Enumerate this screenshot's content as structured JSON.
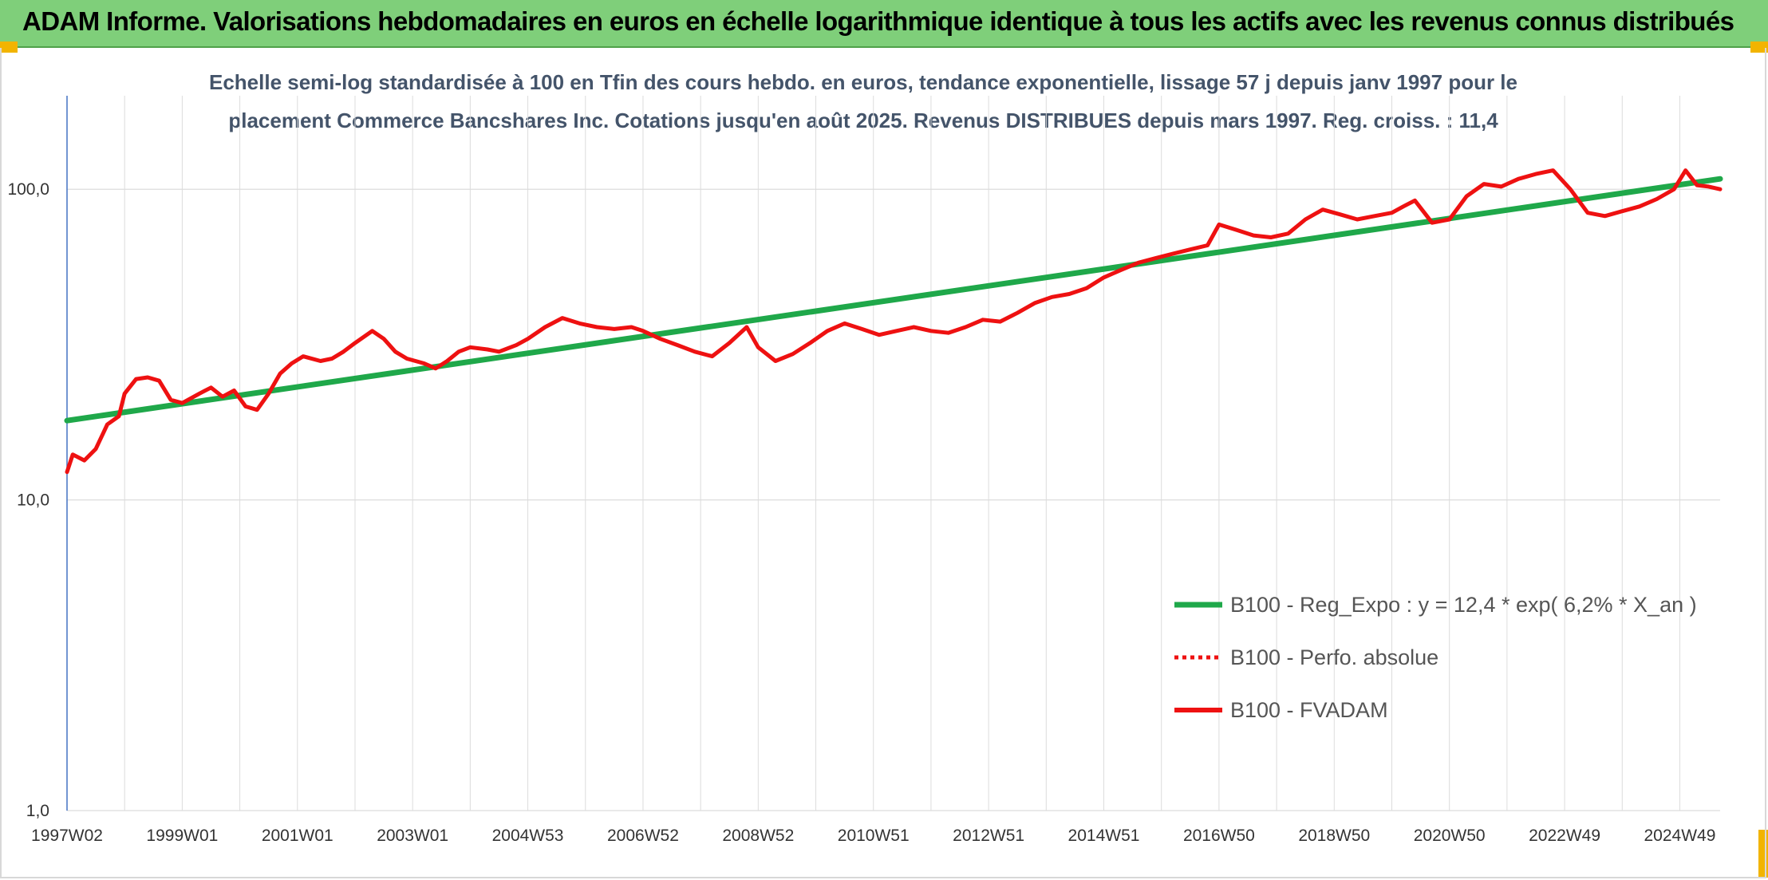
{
  "header": {
    "title": "ADAM Informe. Valorisations hebdomadaires en euros en échelle logarithmique identique à tous les actifs avec les revenus connus distribués"
  },
  "colors": {
    "banner": "#7fcf7a",
    "trend": "#1fa84a",
    "series": "#ee1111",
    "grid": "#dcdcdc",
    "axis": "#4472c4"
  },
  "chart_data": {
    "type": "line",
    "title_lines": [
      "Echelle semi-log standardisée à 100 en Tfin des cours hebdo. en euros, tendance exponentielle, lissage 57 j depuis janv 1997 pour le",
      "placement Commerce Bancshares Inc. Cotations jusqu'en août 2025. Revenus DISTRIBUES depuis mars 1997. Reg. croiss. : 11,4"
    ],
    "y_scale": "log",
    "ylim": [
      1,
      200
    ],
    "xlim": [
      1997.0,
      2025.7
    ],
    "y_ticks": [
      {
        "value": 1,
        "label": "1,0"
      },
      {
        "value": 10,
        "label": "10,0"
      },
      {
        "value": 100,
        "label": "100,0"
      }
    ],
    "x_ticks": [
      {
        "value": 1997.0,
        "label": "1997W02"
      },
      {
        "value": 1999.0,
        "label": "1999W01"
      },
      {
        "value": 2001.0,
        "label": "2001W01"
      },
      {
        "value": 2003.0,
        "label": "2003W01"
      },
      {
        "value": 2005.0,
        "label": "2004W53"
      },
      {
        "value": 2007.0,
        "label": "2006W52"
      },
      {
        "value": 2009.0,
        "label": "2008W52"
      },
      {
        "value": 2011.0,
        "label": "2010W51"
      },
      {
        "value": 2013.0,
        "label": "2012W51"
      },
      {
        "value": 2015.0,
        "label": "2014W51"
      },
      {
        "value": 2017.0,
        "label": "2016W50"
      },
      {
        "value": 2019.0,
        "label": "2018W50"
      },
      {
        "value": 2021.0,
        "label": "2020W50"
      },
      {
        "value": 2023.0,
        "label": "2022W49"
      },
      {
        "value": 2025.0,
        "label": "2024W49"
      }
    ],
    "grid_x": true,
    "grid_y": true,
    "legend_position": "right-center",
    "series": [
      {
        "name": "B100 - Reg_Expo : y = 12,4 * exp( 6,2% *  X_an )",
        "style": "trend",
        "x": [
          1997.0,
          2025.7
        ],
        "y": [
          18.0,
          108.0
        ]
      },
      {
        "name": "B100 - Perfo. absolue",
        "style": "dotted",
        "x": [],
        "y": []
      },
      {
        "name": "B100 - FVADAM",
        "style": "solid",
        "x": [
          1997.0,
          1997.1,
          1997.3,
          1997.5,
          1997.7,
          1997.9,
          1998.0,
          1998.2,
          1998.4,
          1998.6,
          1998.8,
          1999.0,
          1999.3,
          1999.5,
          1999.7,
          1999.9,
          2000.1,
          2000.3,
          2000.5,
          2000.7,
          2000.9,
          2001.1,
          2001.4,
          2001.6,
          2001.8,
          2002.0,
          2002.3,
          2002.5,
          2002.7,
          2002.9,
          2003.2,
          2003.4,
          2003.6,
          2003.8,
          2004.0,
          2004.3,
          2004.5,
          2004.8,
          2005.0,
          2005.3,
          2005.6,
          2005.9,
          2006.2,
          2006.5,
          2006.8,
          2007.0,
          2007.3,
          2007.6,
          2007.9,
          2008.2,
          2008.5,
          2008.8,
          2009.0,
          2009.3,
          2009.6,
          2009.9,
          2010.2,
          2010.5,
          2010.8,
          2011.1,
          2011.4,
          2011.7,
          2012.0,
          2012.3,
          2012.6,
          2012.9,
          2013.2,
          2013.5,
          2013.8,
          2014.1,
          2014.4,
          2014.7,
          2015.0,
          2015.3,
          2015.6,
          2015.9,
          2016.2,
          2016.5,
          2016.8,
          2017.0,
          2017.3,
          2017.6,
          2017.9,
          2018.2,
          2018.5,
          2018.8,
          2019.1,
          2019.4,
          2019.7,
          2020.0,
          2020.2,
          2020.4,
          2020.7,
          2021.0,
          2021.3,
          2021.6,
          2021.9,
          2022.2,
          2022.5,
          2022.8,
          2023.1,
          2023.4,
          2023.7,
          2024.0,
          2024.3,
          2024.6,
          2024.9,
          2025.1,
          2025.3,
          2025.5,
          2025.7
        ],
        "y": [
          12.3,
          14.0,
          13.4,
          14.6,
          17.5,
          18.6,
          22.0,
          24.5,
          24.8,
          24.2,
          21.0,
          20.5,
          22.0,
          23.0,
          21.5,
          22.5,
          20.0,
          19.5,
          22.0,
          25.5,
          27.5,
          29.0,
          28.0,
          28.5,
          30.0,
          32.0,
          35.0,
          33.0,
          30.0,
          28.5,
          27.5,
          26.5,
          28.0,
          30.0,
          31.0,
          30.5,
          30.0,
          31.5,
          33.0,
          36.0,
          38.5,
          37.0,
          36.0,
          35.5,
          36.0,
          35.0,
          33.0,
          31.5,
          30.0,
          29.0,
          32.0,
          36.0,
          31.0,
          28.0,
          29.5,
          32.0,
          35.0,
          37.0,
          35.5,
          34.0,
          35.0,
          36.0,
          35.0,
          34.5,
          36.0,
          38.0,
          37.5,
          40.0,
          43.0,
          45.0,
          46.0,
          48.0,
          52.0,
          55.0,
          58.0,
          60.0,
          62.0,
          64.0,
          66.0,
          77.0,
          74.0,
          71.0,
          70.0,
          72.0,
          80.0,
          86.0,
          83.0,
          80.0,
          82.0,
          84.0,
          88.0,
          92.0,
          78.0,
          80.0,
          95.0,
          104.0,
          102.0,
          108.0,
          112.0,
          115.0,
          100.0,
          84.0,
          82.0,
          85.0,
          88.0,
          93.0,
          100.0,
          115.0,
          103.0,
          102.0,
          100.0
        ]
      }
    ]
  }
}
